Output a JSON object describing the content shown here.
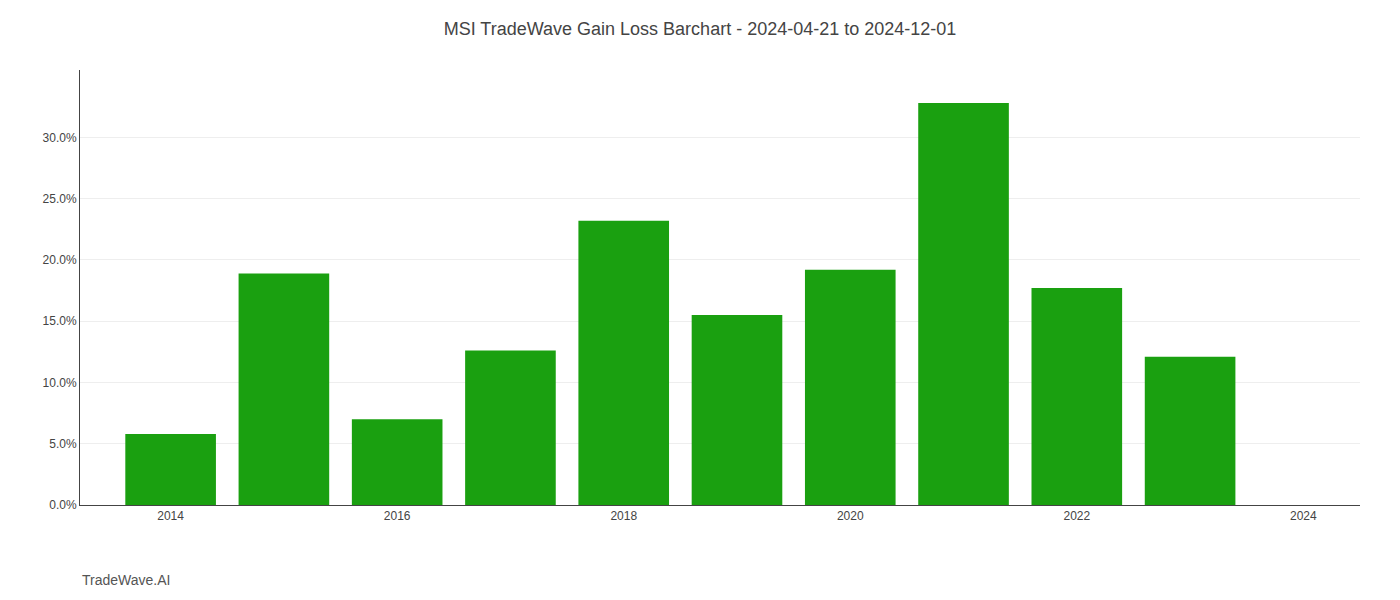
{
  "chart_data": {
    "type": "bar",
    "title": "MSI TradeWave Gain Loss Barchart - 2024-04-21 to 2024-12-01",
    "x": [
      2014,
      2015,
      2016,
      2017,
      2018,
      2019,
      2020,
      2021,
      2022,
      2023
    ],
    "values": [
      0.058,
      0.189,
      0.07,
      0.126,
      0.232,
      0.155,
      0.192,
      0.328,
      0.177,
      0.121
    ],
    "color": "#1aa010",
    "xlim": [
      2013.2,
      2024.5
    ],
    "xticks": [
      2014,
      2016,
      2018,
      2020,
      2022,
      2024
    ],
    "ylim": [
      0,
      0.355
    ],
    "yticks": [
      {
        "value": 0.0,
        "label": "0.0%"
      },
      {
        "value": 0.05,
        "label": "5.0%"
      },
      {
        "value": 0.1,
        "label": "10.0%"
      },
      {
        "value": 0.15,
        "label": "15.0%"
      },
      {
        "value": 0.2,
        "label": "20.0%"
      },
      {
        "value": 0.25,
        "label": "25.0%"
      },
      {
        "value": 0.3,
        "label": "30.0%"
      }
    ],
    "grid": true,
    "annotations": [
      {
        "text": "TradeWave.AI"
      }
    ]
  }
}
